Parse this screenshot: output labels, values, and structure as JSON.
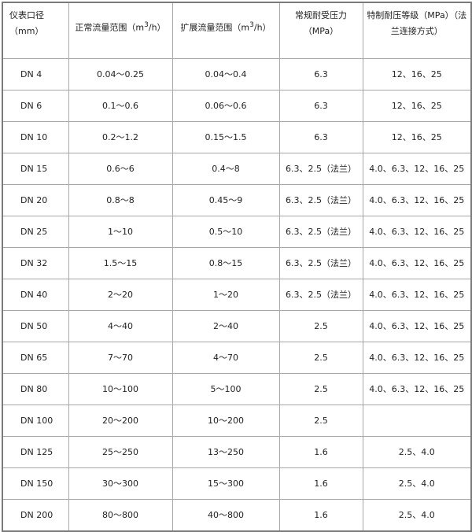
{
  "headers": [
    "仪表口径（mm）",
    "正常流量范围（m",
    "扩展流量范围（m",
    "常规耐受压力（MPa）",
    "特制耐压等级（MPa）（法兰连接方式）"
  ],
  "header_units": {
    "sup": "3",
    "tail": "/h）"
  },
  "rows": [
    [
      "DN 4",
      "0.04～0.25",
      "0.04～0.4",
      "6.3",
      "12、16、25"
    ],
    [
      "DN 6",
      "0.1～0.6",
      "0.06～0.6",
      "6.3",
      "12、16、25"
    ],
    [
      "DN 10",
      "0.2～1.2",
      "0.15～1.5",
      "6.3",
      "12、16、25"
    ],
    [
      "DN 15",
      "0.6～6",
      "0.4～8",
      "6.3、2.5（法兰）",
      "4.0、6.3、12、16、25"
    ],
    [
      "DN 20",
      "0.8～8",
      "0.45～9",
      "6.3、2.5（法兰）",
      "4.0、6.3、12、16、25"
    ],
    [
      "DN 25",
      "1～10",
      "0.5～10",
      "6.3、2.5（法兰）",
      "4.0、6.3、12、16、25"
    ],
    [
      "DN 32",
      "1.5～15",
      "0.8～15",
      "6.3、2.5（法兰）",
      "4.0、6.3、12、16、25"
    ],
    [
      "DN 40",
      "2～20",
      "1～20",
      "6.3、2.5（法兰）",
      "4.0、6.3、12、16、25"
    ],
    [
      "DN 50",
      "4～40",
      "2～40",
      "2.5",
      "4.0、6.3、12、16、25"
    ],
    [
      "DN 65",
      "7～70",
      "4～70",
      "2.5",
      "4.0、6.3、12、16、25"
    ],
    [
      "DN 80",
      "10～100",
      "5～100",
      "2.5",
      "4.0、6.3、12、16、25"
    ],
    [
      "DN 100",
      "20～200",
      "10～200",
      "2.5",
      ""
    ],
    [
      "DN 125",
      "25～250",
      "13～250",
      "1.6",
      "2.5、4.0"
    ],
    [
      "DN 150",
      "30～300",
      "15～300",
      "1.6",
      "2.5、4.0"
    ],
    [
      "DN 200",
      "80～800",
      "40～800",
      "1.6",
      "2.5、4.0"
    ]
  ]
}
